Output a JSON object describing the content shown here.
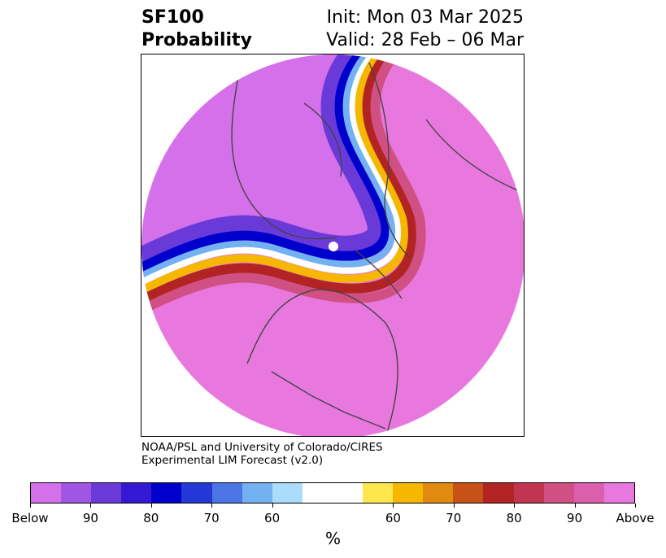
{
  "header": {
    "title_line1": "SF100",
    "title_line2": "Probability",
    "init_text": "Init: Mon 03 Mar 2025",
    "valid_text": "Valid: 28 Feb – 06 Mar"
  },
  "credit": {
    "line1": "NOAA/PSL and University of Colorado/CIRES",
    "line2": "Experimental LIM Forecast (v2.0)"
  },
  "colorbar": {
    "unit": "%",
    "swatches": [
      "#d470ea",
      "#a056e3",
      "#6a3ad9",
      "#3418d4",
      "#0000cc",
      "#2438d8",
      "#4b74e4",
      "#74b1f2",
      "#acdcfc",
      "#ffffff",
      "#ffe64d",
      "#f5b700",
      "#e08a0e",
      "#c85117",
      "#b22424",
      "#c23550",
      "#d15083",
      "#dc5fae",
      "#e978de"
    ],
    "tick_labels": [
      "Below",
      "90",
      "80",
      "70",
      "60",
      "60",
      "70",
      "80",
      "90",
      "Above"
    ],
    "colors": {
      "below_max": "#d470ea",
      "above_max": "#e978de",
      "neutral": "#ffffff"
    }
  }
}
